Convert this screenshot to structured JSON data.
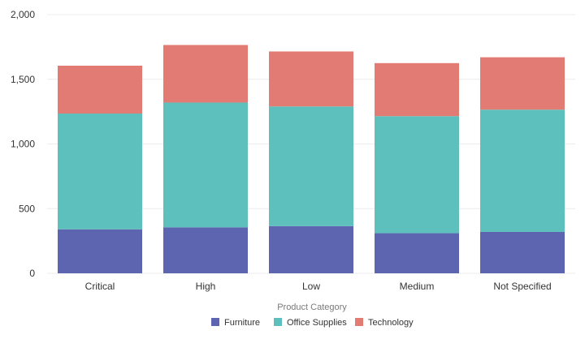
{
  "chart_data": {
    "type": "bar",
    "stacked": true,
    "categories": [
      "Critical",
      "High",
      "Low",
      "Medium",
      "Not Specified"
    ],
    "series": [
      {
        "name": "Furniture",
        "color": "#5d64b0",
        "values": [
          340,
          355,
          365,
          310,
          320
        ]
      },
      {
        "name": "Office Supplies",
        "color": "#5dc0bc",
        "values": [
          895,
          965,
          925,
          905,
          945
        ]
      },
      {
        "name": "Technology",
        "color": "#e27b74",
        "values": [
          370,
          445,
          425,
          410,
          405
        ]
      }
    ],
    "ylim": [
      0,
      2000
    ],
    "yticks": [
      0,
      500,
      1000,
      1500,
      2000
    ],
    "ytick_labels": [
      "0",
      "500",
      "1,000",
      "1,500",
      "2,000"
    ],
    "grid": true,
    "legend": {
      "title": "Product Category",
      "placement": "bottom-center"
    },
    "title": "",
    "xlabel": "",
    "ylabel": ""
  }
}
